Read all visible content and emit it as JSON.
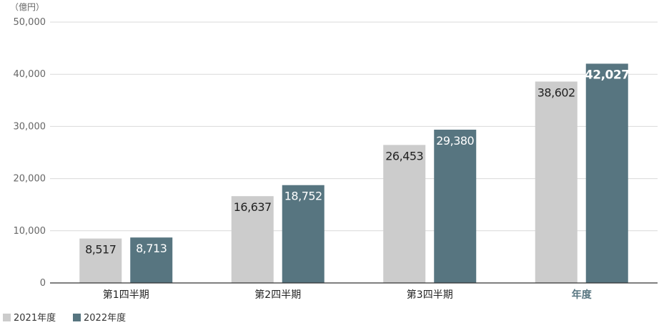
{
  "chart_data": {
    "type": "bar",
    "unit_label": "（億円）",
    "categories": [
      "第1四半期",
      "第2四半期",
      "第3四半期",
      "年度"
    ],
    "highlight_category": "年度",
    "series": [
      {
        "name": "2021年度",
        "color": "#cccccc",
        "label_color": "#222222",
        "values": [
          8517,
          16637,
          26453,
          38602
        ]
      },
      {
        "name": "2022年度",
        "color": "#577580",
        "label_color": "#ffffff",
        "values": [
          8713,
          18752,
          29380,
          42027
        ]
      }
    ],
    "data_labels": [
      [
        "8,517",
        "16,637",
        "26,453",
        "38,602"
      ],
      [
        "8,713",
        "18,752",
        "29,380",
        "42,027"
      ]
    ],
    "bold_labels": [
      [
        false,
        false,
        false,
        false
      ],
      [
        false,
        false,
        false,
        true
      ]
    ],
    "yticks": [
      0,
      10000,
      20000,
      30000,
      40000,
      50000
    ],
    "ytick_labels": [
      "0",
      "10,000",
      "20,000",
      "30,000",
      "40,000",
      "50,000"
    ],
    "ylim": [
      0,
      50000
    ],
    "grid": true,
    "legend_position": "bottom-left",
    "xlabel": "",
    "ylabel": ""
  }
}
